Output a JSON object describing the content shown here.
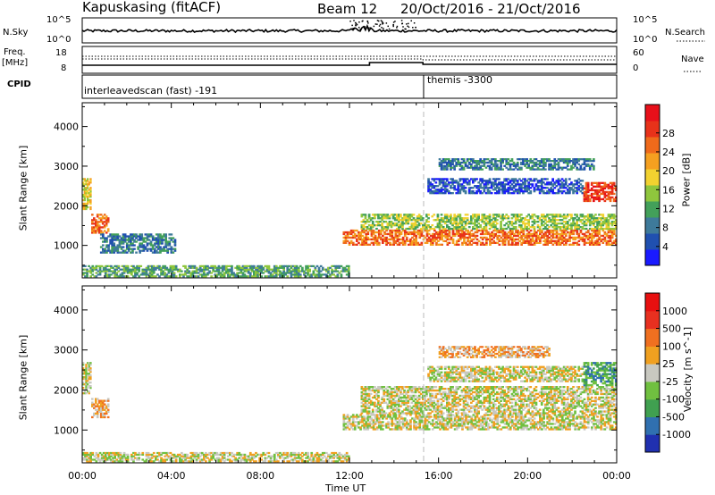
{
  "header": {
    "station": "Kapuskasing (fitACF)",
    "beam": "Beam 12",
    "dates": "20/Oct/2016 - 21/Oct/2016"
  },
  "top_panels": {
    "nsky_label": "N.Sky",
    "nsky_ticks": [
      "10^5",
      "10^0"
    ],
    "nsearch_label": "N.Search",
    "freq_label": "Freq.",
    "freq_unit": "[MHz]",
    "freq_ticks": [
      "18",
      "8"
    ],
    "nave_label": "Nave",
    "nave_ticks": [
      "60",
      "0"
    ],
    "cpid_label": "CPID",
    "cpid_segments": [
      {
        "start_hour": 0.0,
        "label": "interleavedscan (fast) -191"
      },
      {
        "start_hour": 15.33,
        "label": "themis -3300"
      }
    ]
  },
  "chart_data": [
    {
      "type": "heatmap",
      "title": "",
      "xlabel": "",
      "ylabel": "Slant Range [km]",
      "x_ticks": [
        "00:00",
        "04:00",
        "08:00",
        "12:00",
        "16:00",
        "20:00",
        "00:00"
      ],
      "xlim_hours": [
        0,
        24
      ],
      "y_ticks": [
        1000,
        2000,
        3000,
        4000
      ],
      "ylim": [
        180,
        4600
      ],
      "colorbar": {
        "label": "Power [dB]",
        "ticks": [
          "4",
          "8",
          "12",
          "16",
          "20",
          "24",
          "28"
        ],
        "colors": [
          "#1a1aff",
          "#2050b0",
          "#3e7a9a",
          "#43a05a",
          "#8fc63d",
          "#f2d230",
          "#f5a020",
          "#ef6a1b",
          "#e8321a",
          "#e8101a"
        ]
      },
      "echo_regions": [
        {
          "t0": 0.0,
          "t1": 0.4,
          "r0": 1900,
          "r1": 2700,
          "level": 5
        },
        {
          "t0": 0.4,
          "t1": 1.2,
          "r0": 1300,
          "r1": 1800,
          "level": 7
        },
        {
          "t0": 0.8,
          "t1": 4.2,
          "r0": 800,
          "r1": 1300,
          "level": 2
        },
        {
          "t0": 0.0,
          "t1": 12.0,
          "r0": 200,
          "r1": 500,
          "level": 3
        },
        {
          "t0": 11.7,
          "t1": 24.0,
          "r0": 1000,
          "r1": 1400,
          "level": 7
        },
        {
          "t0": 12.5,
          "t1": 24.0,
          "r0": 1400,
          "r1": 1800,
          "level": 4
        },
        {
          "t0": 15.5,
          "t1": 22.5,
          "r0": 2300,
          "r1": 2700,
          "level": 1
        },
        {
          "t0": 16.0,
          "t1": 23.0,
          "r0": 2900,
          "r1": 3200,
          "level": 2
        },
        {
          "t0": 22.5,
          "t1": 24.0,
          "r0": 2100,
          "r1": 2600,
          "level": 8
        }
      ]
    },
    {
      "type": "heatmap",
      "title": "",
      "xlabel": "Time UT",
      "ylabel": "Slant Range [km]",
      "x_ticks": [
        "00:00",
        "04:00",
        "08:00",
        "12:00",
        "16:00",
        "20:00",
        "00:00"
      ],
      "xlim_hours": [
        0,
        24
      ],
      "y_ticks": [
        1000,
        2000,
        3000,
        4000
      ],
      "ylim": [
        180,
        4600
      ],
      "colorbar": {
        "label": "Velocity [m s^-1]",
        "ticks": [
          "1000",
          "500",
          "100",
          "25",
          "-25",
          "-100",
          "-500",
          "-1000"
        ],
        "colors": [
          "#2030b0",
          "#3070b0",
          "#40a050",
          "#70c040",
          "#c8c8c0",
          "#f0a020",
          "#f07020",
          "#e83020",
          "#e81010"
        ]
      },
      "echo_regions": [
        {
          "t0": 0.0,
          "t1": 0.4,
          "r0": 1900,
          "r1": 2700,
          "level": 4
        },
        {
          "t0": 0.4,
          "t1": 1.2,
          "r0": 1300,
          "r1": 1800,
          "level": 5
        },
        {
          "t0": 0.0,
          "t1": 12.0,
          "r0": 200,
          "r1": 450,
          "level": 4
        },
        {
          "t0": 11.7,
          "t1": 24.0,
          "r0": 1000,
          "r1": 1400,
          "level": 4
        },
        {
          "t0": 12.5,
          "t1": 24.0,
          "r0": 1400,
          "r1": 2100,
          "level": 4
        },
        {
          "t0": 15.5,
          "t1": 22.5,
          "r0": 2200,
          "r1": 2600,
          "level": 4
        },
        {
          "t0": 16.0,
          "t1": 21.0,
          "r0": 2800,
          "r1": 3100,
          "level": 5
        },
        {
          "t0": 22.5,
          "t1": 24.0,
          "r0": 2100,
          "r1": 2700,
          "level": 2
        }
      ]
    }
  ]
}
